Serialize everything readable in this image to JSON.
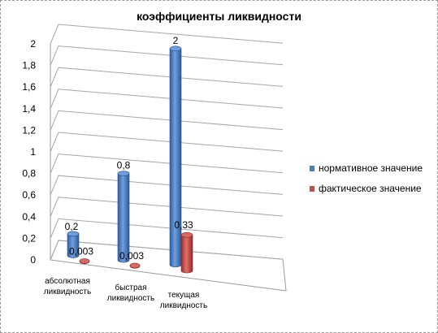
{
  "chart_data": {
    "type": "bar",
    "title": "коэффициенты ликвидности",
    "categories": [
      "абсолютная ликвидность",
      "быстрая ликвидность",
      "текущая ликвидность"
    ],
    "category_lines": [
      [
        "абсолютная",
        "ликвидность"
      ],
      [
        "быстрая",
        "ликвидность"
      ],
      [
        "текущая",
        "ликвидность"
      ]
    ],
    "series": [
      {
        "name": "нормативное значение",
        "values": [
          0.2,
          0.8,
          2
        ],
        "labels": [
          "0,2",
          "0,8",
          "2"
        ],
        "color": "#4a7ebb"
      },
      {
        "name": "фактическое значение",
        "values": [
          0.003,
          0.003,
          0.33
        ],
        "labels": [
          "0,003",
          "0,003",
          "0,33"
        ],
        "color": "#c0504d"
      }
    ],
    "yticks": [
      "0",
      "0,2",
      "0,4",
      "0,6",
      "0,8",
      "1",
      "1,2",
      "1,4",
      "1,6",
      "1,8",
      "2"
    ],
    "ylim": [
      0,
      2
    ],
    "grid": true,
    "legend": "right",
    "style": "3d-cylinder"
  }
}
